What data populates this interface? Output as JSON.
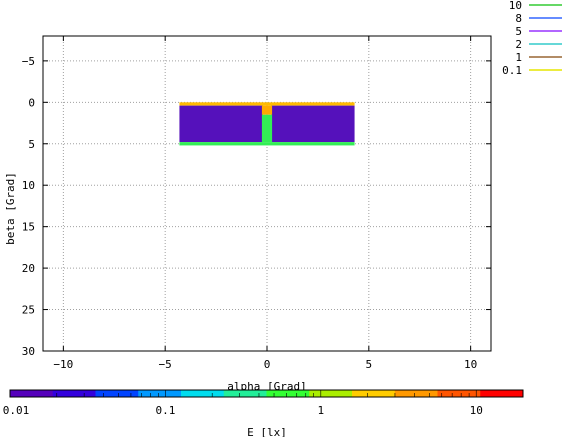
{
  "chart_data": {
    "type": "heatmap",
    "xlabel": "alpha [Grad]",
    "ylabel": "beta [Grad]",
    "xlim": [
      -11,
      11
    ],
    "ylim": [
      30,
      -8
    ],
    "x_ticks": [
      -10,
      -5,
      0,
      5,
      10
    ],
    "y_ticks": [
      -5,
      0,
      5,
      10,
      15,
      20,
      25,
      30
    ],
    "x_tick_labels": [
      "−10",
      "−5",
      "0",
      "5",
      "10"
    ],
    "y_tick_labels": [
      "−5",
      "0",
      "5",
      "10",
      "15",
      "20",
      "25",
      "30"
    ],
    "grid": true,
    "legend_position": "top-right",
    "contour_levels": [
      {
        "label": "10",
        "color": "#33cc33"
      },
      {
        "label": "8",
        "color": "#3366ff"
      },
      {
        "label": "5",
        "color": "#9933ff"
      },
      {
        "label": "2",
        "color": "#33cccc"
      },
      {
        "label": "1",
        "color": "#996633"
      },
      {
        "label": "0.1",
        "color": "#e6e600"
      }
    ],
    "colorbar": {
      "label": "E [lx]",
      "scale": "log",
      "range": [
        0.01,
        20
      ],
      "ticks": [
        0.01,
        0.1,
        1,
        10
      ],
      "tick_labels": [
        "0.01",
        "0.1",
        "1",
        "10"
      ],
      "colors": [
        "#5500bb",
        "#3300dd",
        "#0044ff",
        "#0099ff",
        "#00ddee",
        "#22ee99",
        "#33ff33",
        "#aaee00",
        "#ffcc00",
        "#ff9900",
        "#ff5500",
        "#ff0000"
      ]
    },
    "regions": [
      {
        "name": "top-edge-band",
        "x": [
          -4.3,
          4.3
        ],
        "y": [
          0.0,
          0.4
        ],
        "value": 5,
        "color": "#ffbb00"
      },
      {
        "name": "left-panel",
        "x": [
          -4.3,
          -0.2
        ],
        "y": [
          0.4,
          4.8
        ],
        "value": 0.01,
        "color": "#5511bb"
      },
      {
        "name": "right-panel",
        "x": [
          0.2,
          4.3
        ],
        "y": [
          0.4,
          4.8
        ],
        "value": 0.01,
        "color": "#5511bb"
      },
      {
        "name": "center-strip-upper",
        "x": [
          -0.25,
          0.25
        ],
        "y": [
          0.4,
          1.5
        ],
        "value": 5,
        "color": "#ffaa00"
      },
      {
        "name": "center-strip-lower",
        "x": [
          -0.25,
          0.25
        ],
        "y": [
          1.5,
          4.8
        ],
        "value": 1.5,
        "color": "#33ee55"
      },
      {
        "name": "bottom-edge-band",
        "x": [
          -4.3,
          4.3
        ],
        "y": [
          4.8,
          5.2
        ],
        "value": 1.5,
        "color": "#33ee55"
      }
    ]
  }
}
